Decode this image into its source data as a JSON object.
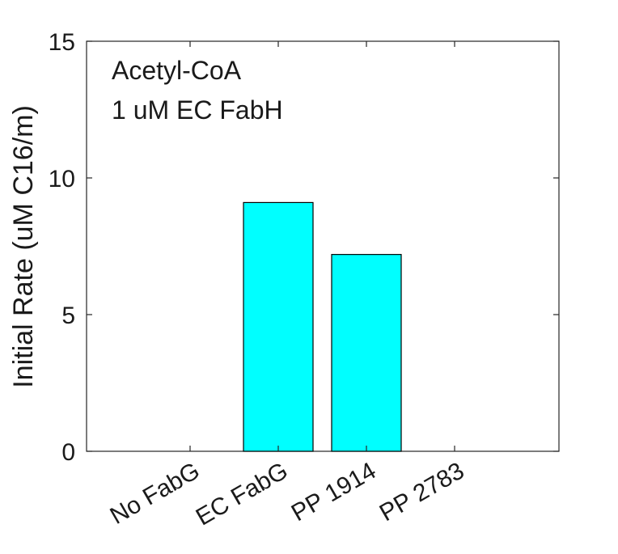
{
  "chart_data": {
    "type": "bar",
    "categories": [
      "No FabG",
      "EC FabG",
      "PP 1914",
      "PP 2783"
    ],
    "values": [
      0,
      9.1,
      7.2,
      0
    ],
    "ylabel": "Initial Rate (uM C16/m)",
    "xlabel": "",
    "ylim": [
      0,
      15
    ],
    "yticks": [
      0,
      5,
      10,
      15
    ],
    "annotations": [
      "Acetyl-CoA",
      "1 uM EC FabH"
    ],
    "bar_color": "#00FFFF",
    "bar_edge_color": "#000000",
    "grid": false,
    "legend": "none"
  }
}
